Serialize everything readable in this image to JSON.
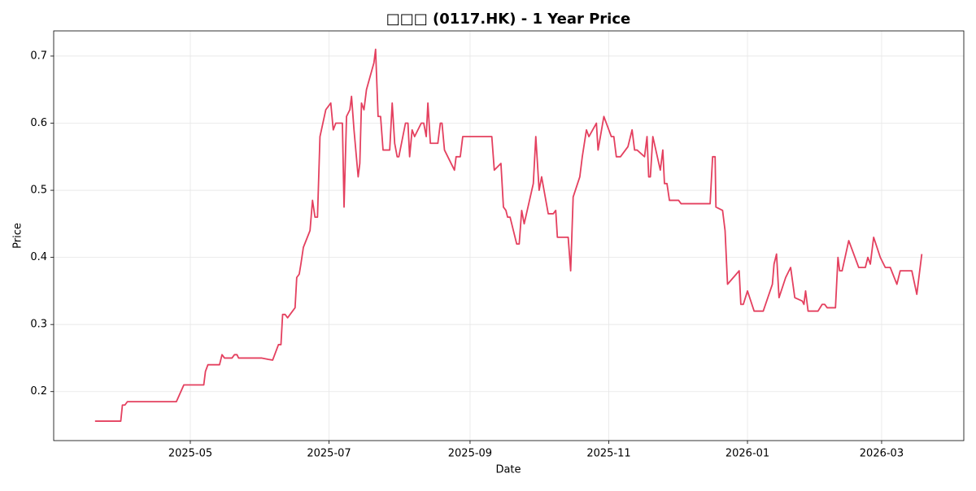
{
  "chart_data": {
    "type": "line",
    "title": "□□□ (0117.HK) - 1 Year Price",
    "xlabel": "Date",
    "ylabel": "Price",
    "x": [
      2025.214,
      2025.245,
      2025.247,
      2025.25,
      2025.253,
      2025.312,
      2025.321,
      2025.345,
      2025.347,
      2025.35,
      2025.364,
      2025.367,
      2025.37,
      2025.379,
      2025.382,
      2025.385,
      2025.387,
      2025.415,
      2025.423,
      2025.428,
      2025.435,
      2025.438,
      2025.44,
      2025.443,
      2025.446,
      2025.455,
      2025.457,
      2025.46,
      2025.462,
      2025.465,
      2025.473,
      2025.476,
      2025.479,
      2025.482,
      2025.485,
      2025.492,
      2025.498,
      2025.501,
      2025.504,
      2025.512,
      2025.514,
      2025.517,
      2025.521,
      2025.523,
      2025.526,
      2025.531,
      2025.533,
      2025.535,
      2025.538,
      2025.541,
      2025.55,
      2025.552,
      2025.555,
      2025.558,
      2025.561,
      2025.569,
      2025.572,
      2025.575,
      2025.578,
      2025.58,
      2025.588,
      2025.591,
      2025.593,
      2025.596,
      2025.599,
      2025.607,
      2025.61,
      2025.613,
      2025.615,
      2025.618,
      2025.627,
      2025.63,
      2025.632,
      2025.635,
      2025.647,
      2025.649,
      2025.654,
      2025.657,
      2025.692,
      2025.695,
      2025.703,
      2025.706,
      2025.709,
      2025.711,
      2025.714,
      2025.722,
      2025.725,
      2025.728,
      2025.731,
      2025.742,
      2025.745,
      2025.749,
      2025.752,
      2025.76,
      2025.766,
      2025.769,
      2025.771,
      2025.784,
      2025.787,
      2025.79,
      2025.798,
      2025.801,
      2025.806,
      2025.809,
      2025.818,
      2025.82,
      2025.827,
      2025.836,
      2025.839,
      2025.842,
      2025.847,
      2025.856,
      2025.861,
      2025.864,
      2025.867,
      2025.876,
      2025.879,
      2025.881,
      2025.883,
      2025.886,
      2025.895,
      2025.898,
      2025.9,
      2025.903,
      2025.906,
      2025.917,
      2025.92,
      2025.955,
      2025.958,
      2025.961,
      2025.962,
      2025.97,
      2025.973,
      2025.976,
      2025.99,
      2025.992,
      2025.995,
      2026.0,
      2026.008,
      2026.019,
      2026.03,
      2026.032,
      2026.035,
      2026.038,
      2026.046,
      2026.052,
      2026.057,
      2026.066,
      2026.068,
      2026.07,
      2026.073,
      2026.085,
      2026.09,
      2026.093,
      2026.096,
      2026.106,
      2026.109,
      2026.111,
      2026.114,
      2026.122,
      2026.134,
      2026.142,
      2026.145,
      2026.148,
      2026.152,
      2026.16,
      2026.166,
      2026.172,
      2026.18,
      2026.184,
      2026.198,
      2026.204,
      2026.21
    ],
    "series": [
      {
        "name": "Price",
        "color": "#e4405f",
        "values": [
          0.156,
          0.156,
          0.18,
          0.18,
          0.185,
          0.185,
          0.21,
          0.21,
          0.23,
          0.24,
          0.24,
          0.255,
          0.25,
          0.25,
          0.255,
          0.255,
          0.25,
          0.25,
          0.248,
          0.247,
          0.27,
          0.27,
          0.315,
          0.315,
          0.31,
          0.325,
          0.37,
          0.375,
          0.39,
          0.415,
          0.44,
          0.485,
          0.46,
          0.46,
          0.58,
          0.62,
          0.63,
          0.59,
          0.6,
          0.6,
          0.475,
          0.61,
          0.62,
          0.64,
          0.59,
          0.52,
          0.54,
          0.63,
          0.62,
          0.65,
          0.69,
          0.71,
          0.61,
          0.61,
          0.56,
          0.56,
          0.63,
          0.57,
          0.55,
          0.55,
          0.6,
          0.6,
          0.55,
          0.59,
          0.58,
          0.6,
          0.6,
          0.58,
          0.63,
          0.57,
          0.57,
          0.6,
          0.6,
          0.56,
          0.53,
          0.55,
          0.55,
          0.58,
          0.58,
          0.53,
          0.54,
          0.475,
          0.47,
          0.46,
          0.46,
          0.42,
          0.42,
          0.47,
          0.45,
          0.51,
          0.58,
          0.5,
          0.52,
          0.465,
          0.465,
          0.47,
          0.43,
          0.43,
          0.38,
          0.49,
          0.52,
          0.55,
          0.59,
          0.58,
          0.6,
          0.56,
          0.61,
          0.58,
          0.58,
          0.55,
          0.55,
          0.565,
          0.59,
          0.56,
          0.56,
          0.55,
          0.58,
          0.52,
          0.52,
          0.58,
          0.53,
          0.56,
          0.51,
          0.51,
          0.485,
          0.485,
          0.48,
          0.48,
          0.55,
          0.55,
          0.475,
          0.47,
          0.44,
          0.36,
          0.38,
          0.33,
          0.33,
          0.35,
          0.32,
          0.32,
          0.36,
          0.39,
          0.405,
          0.34,
          0.37,
          0.385,
          0.34,
          0.335,
          0.33,
          0.35,
          0.32,
          0.32,
          0.33,
          0.33,
          0.325,
          0.325,
          0.4,
          0.38,
          0.38,
          0.425,
          0.385,
          0.385,
          0.4,
          0.39,
          0.43,
          0.4,
          0.385,
          0.385,
          0.36,
          0.38,
          0.38,
          0.345,
          0.405
        ]
      }
    ],
    "xlim": [
      2025.1642,
      2026.2606
    ],
    "xticks": [
      {
        "value": 2025.3288,
        "label": "2025-05"
      },
      {
        "value": 2025.4959,
        "label": "2025-07"
      },
      {
        "value": 2025.6658,
        "label": "2025-09"
      },
      {
        "value": 2025.8329,
        "label": "2025-11"
      },
      {
        "value": 2026.0,
        "label": "2026-01"
      },
      {
        "value": 2026.1616,
        "label": "2026-03"
      }
    ],
    "ylim": [
      0.127,
      0.7375
    ],
    "yticks": [
      0.2,
      0.3,
      0.4,
      0.5,
      0.6,
      0.7
    ],
    "grid": true
  }
}
